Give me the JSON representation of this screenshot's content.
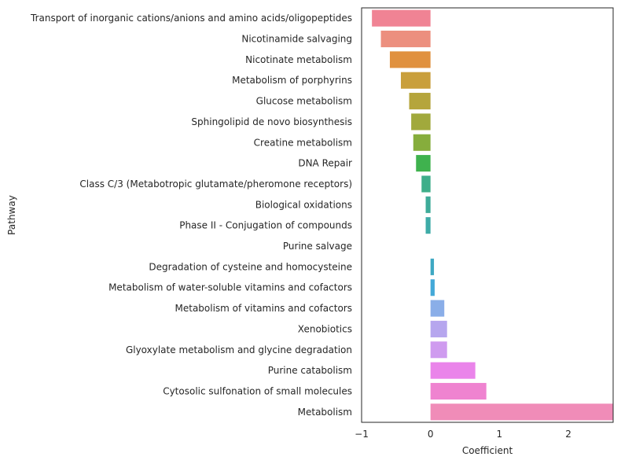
{
  "chart_data": {
    "type": "bar",
    "orientation": "horizontal",
    "xlabel": "Coefficient",
    "ylabel": "Pathway",
    "xlim": [
      -1.0,
      2.65
    ],
    "xticks": [
      -1,
      0,
      1,
      2
    ],
    "xtick_labels": [
      "−1",
      "0",
      "1",
      "2"
    ],
    "grid": false,
    "categories": [
      "Transport of inorganic cations/anions and amino acids/oligopeptides",
      "Nicotinamide salvaging",
      "Nicotinate metabolism",
      "Metabolism of porphyrins",
      "Glucose metabolism",
      "Sphingolipid de novo biosynthesis",
      "Creatine metabolism",
      "DNA Repair",
      "Class C/3 (Metabotropic glutamate/pheromone receptors)",
      "Biological oxidations",
      "Phase II - Conjugation of compounds",
      "Purine salvage",
      "Degradation of cysteine and homocysteine",
      "Metabolism of water-soluble vitamins and cofactors",
      "Metabolism of vitamins and cofactors",
      "Xenobiotics",
      "Glyoxylate metabolism and glycine degradation",
      "Purine catabolism",
      "Cytosolic sulfonation of small molecules",
      "Metabolism"
    ],
    "values": [
      -0.85,
      -0.72,
      -0.59,
      -0.43,
      -0.31,
      -0.28,
      -0.25,
      -0.21,
      -0.13,
      -0.07,
      -0.07,
      0.0,
      0.05,
      0.06,
      0.2,
      0.24,
      0.24,
      0.65,
      0.81,
      2.65
    ],
    "colors": [
      "#f08394",
      "#ec8f7e",
      "#e0913f",
      "#c99f3c",
      "#b5a53c",
      "#a1a93c",
      "#86ad3c",
      "#3fb24e",
      "#3eae8a",
      "#3eab99",
      "#3eaba7",
      "#3ca9b5",
      "#3ea8c3",
      "#44a9d8",
      "#8aaee8",
      "#b6a6ee",
      "#cf9bef",
      "#ea84ea",
      "#ef83d0",
      "#f08cb8"
    ]
  }
}
